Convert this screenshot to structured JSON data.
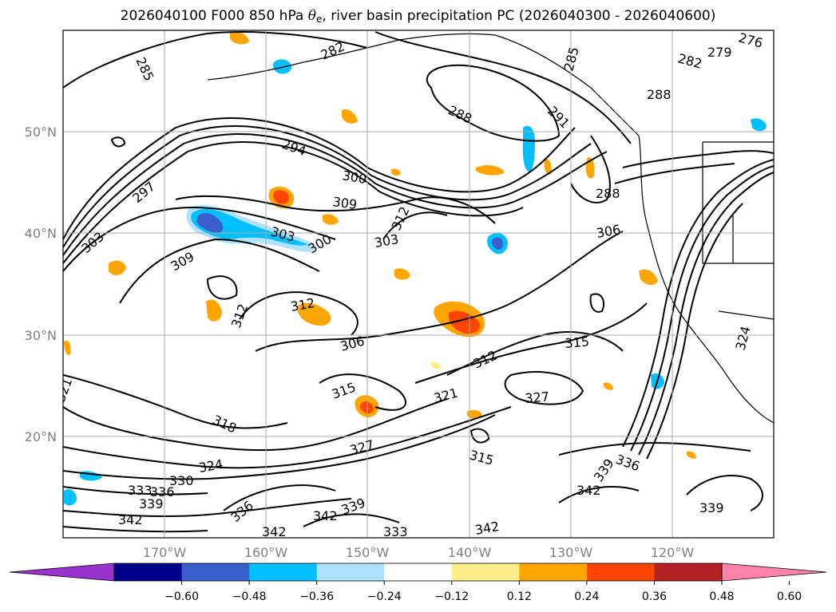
{
  "title": {
    "prefix": "2026040100 F000 850 hPa ",
    "symbol": "θ",
    "subscript": "e",
    "suffix": ", river basin precipitation PC (2026040300 - 2026040600)"
  },
  "lat_labels": [
    "50°N",
    "40°N",
    "30°N",
    "20°N"
  ],
  "lon_labels": [
    "170°W",
    "160°W",
    "150°W",
    "140°W",
    "130°W",
    "120°W"
  ],
  "contour_labels": [
    "276",
    "279",
    "282",
    "282",
    "285",
    "285",
    "288",
    "288",
    "288",
    "291",
    "294",
    "297",
    "300",
    "300",
    "303",
    "303",
    "303",
    "306",
    "306",
    "309",
    "309",
    "312",
    "312",
    "312",
    "312",
    "315",
    "315",
    "315",
    "318",
    "321",
    "321",
    "324",
    "324",
    "327",
    "327",
    "330",
    "333",
    "333",
    "336",
    "336",
    "336",
    "339",
    "339",
    "339",
    "339",
    "342",
    "342",
    "342",
    "342",
    "342"
  ],
  "colorbar": {
    "ticks": [
      "−0.60",
      "−0.48",
      "−0.36",
      "−0.24",
      "−0.12",
      "0.12",
      "0.24",
      "0.36",
      "0.48",
      "0.60"
    ],
    "colors": [
      "#9a32cd",
      "#00008b",
      "#3a5fcd",
      "#00bfff",
      "#b0e2ff",
      "#ffffff",
      "#ffec8b",
      "#ffa500",
      "#ff4500",
      "#b22222",
      "#ff82ab"
    ]
  }
}
